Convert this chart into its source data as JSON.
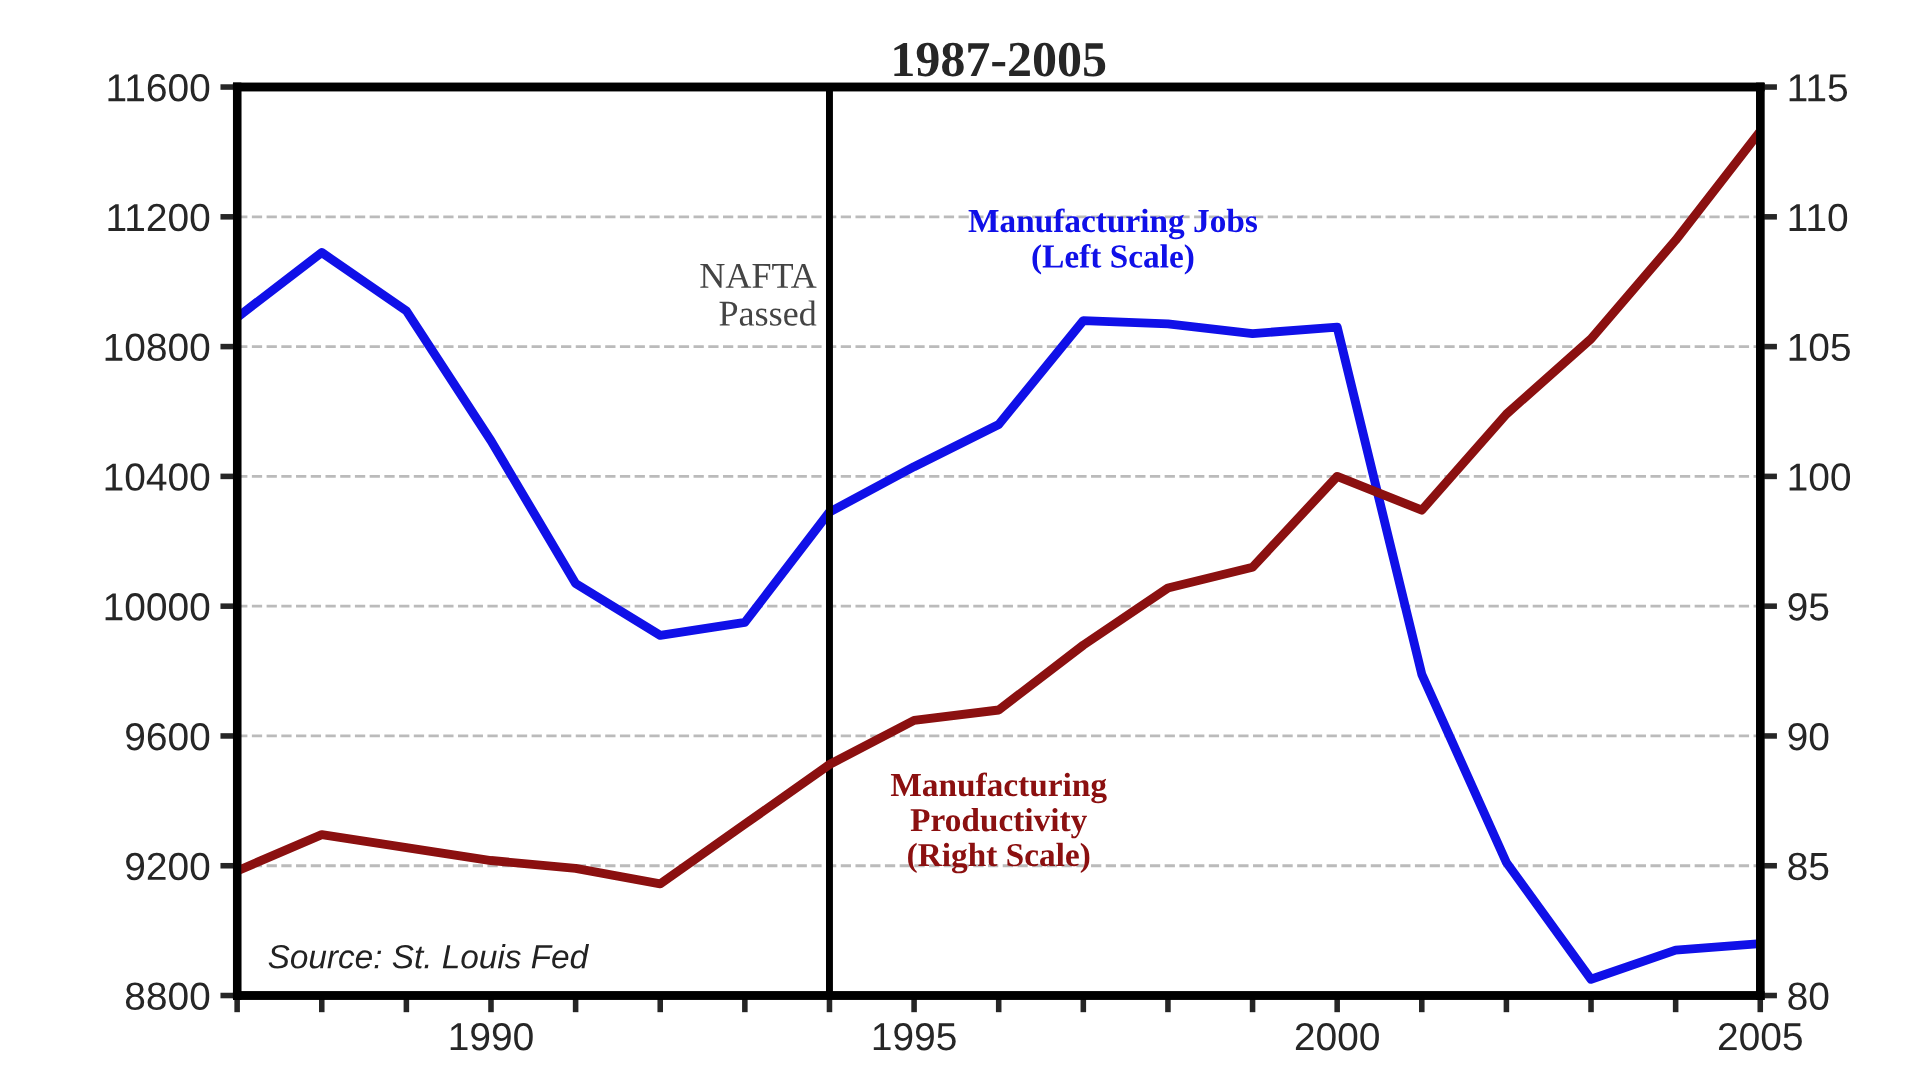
{
  "chart_data": {
    "type": "line",
    "title": "1987-2005",
    "x": [
      1987,
      1988,
      1989,
      1990,
      1991,
      1992,
      1993,
      1994,
      1995,
      1996,
      1997,
      1998,
      1999,
      2000,
      2001,
      2002,
      2003,
      2004,
      2005
    ],
    "series": [
      {
        "name": "Manufacturing Jobs\n(Left Scale)",
        "color": "#1010e8",
        "values": [
          10890,
          11090,
          10910,
          10510,
          10070,
          9910,
          9950,
          10290,
          10430,
          10560,
          10880,
          10870,
          10840,
          10860,
          9790,
          9210,
          8850,
          8940,
          8960
        ]
      },
      {
        "name": "Manufacturing\nProductivity\n(Right Scale)",
        "color": "#8b1010",
        "axis": "y2",
        "values": [
          84.8,
          86.2,
          85.7,
          85.2,
          84.9,
          84.3,
          86.6,
          88.9,
          90.6,
          91.0,
          93.5,
          95.7,
          96.5,
          100.0,
          98.7,
          102.4,
          105.3,
          109.1,
          113.3
        ]
      }
    ],
    "xlim": [
      1987,
      2005
    ],
    "xticks": [
      {
        "value": 1987,
        "label": null
      },
      {
        "value": 1988,
        "label": null
      },
      {
        "value": 1989,
        "label": null
      },
      1990,
      {
        "value": 1991,
        "label": null
      },
      {
        "value": 1992,
        "label": null
      },
      {
        "value": 1993,
        "label": null
      },
      {
        "value": 1994,
        "label": null
      },
      1995,
      {
        "value": 1996,
        "label": null
      },
      {
        "value": 1997,
        "label": null
      },
      {
        "value": 1998,
        "label": null
      },
      {
        "value": 1999,
        "label": null
      },
      2000,
      {
        "value": 2001,
        "label": null
      },
      {
        "value": 2002,
        "label": null
      },
      {
        "value": 2003,
        "label": null
      },
      {
        "value": 2004,
        "label": null
      },
      2005
    ],
    "ylim": [
      8800,
      11600
    ],
    "yticks": [
      8800,
      9200,
      9600,
      10000,
      10400,
      10800,
      11200,
      11600
    ],
    "y2lim": [
      80,
      115
    ],
    "y2ticks": [
      80,
      85,
      90,
      95,
      100,
      105,
      110,
      115
    ],
    "ref_lines": [
      {
        "axis": "x",
        "value": 1994,
        "label": "NAFTA\nPassed",
        "color": "#000000"
      }
    ],
    "annotations": [
      "Source: St. Louis Fed"
    ],
    "grid": "y",
    "legend": false,
    "line_style": "solid",
    "marker": "none"
  }
}
